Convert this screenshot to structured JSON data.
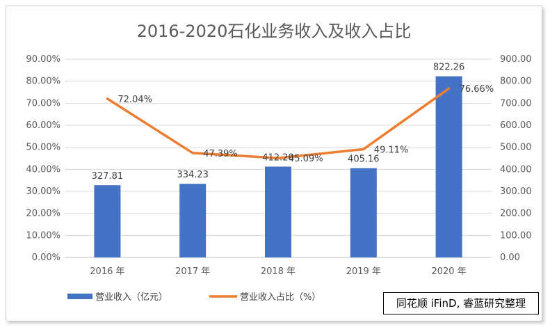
{
  "chart_data": {
    "type": "bar",
    "title": "2016-2020石化业务收入及收入占比",
    "categories": [
      "2016 年",
      "2017 年",
      "2018 年",
      "2019 年",
      "2020 年"
    ],
    "series": [
      {
        "name": "营业收入（亿元）",
        "type": "bar",
        "axis": "right",
        "values": [
          327.81,
          334.23,
          412.2,
          405.16,
          822.26
        ],
        "labels": [
          "327.81",
          "334.23",
          "412.20",
          "405.16",
          "822.26"
        ],
        "color": "#4472c4"
      },
      {
        "name": "营业收入占比（%）",
        "type": "line",
        "axis": "left",
        "values": [
          72.04,
          47.39,
          45.09,
          49.11,
          76.66
        ],
        "labels": [
          "72.04%",
          "47.39%",
          "45.09%",
          "49.11%",
          "76.66%"
        ],
        "color": "#ed7d31"
      }
    ],
    "y_left": {
      "ylim": [
        0,
        90
      ],
      "ticks": [
        "0.00%",
        "10.00%",
        "20.00%",
        "30.00%",
        "40.00%",
        "50.00%",
        "60.00%",
        "70.00%",
        "80.00%",
        "90.00%"
      ]
    },
    "y_right": {
      "ylim": [
        0,
        900
      ],
      "ticks": [
        "0.00",
        "100.00",
        "200.00",
        "300.00",
        "400.00",
        "500.00",
        "600.00",
        "700.00",
        "800.00",
        "900.00"
      ]
    },
    "grid": true,
    "legend": "bottom-left"
  },
  "source_note": "同花顺 iFinD, 睿蓝研究整理"
}
